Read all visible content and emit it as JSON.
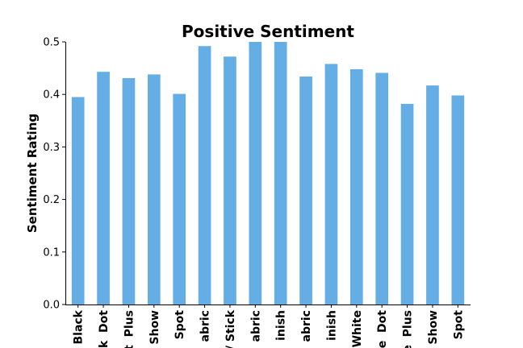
{
  "chart_data": {
    "type": "bar",
    "title": "Positive Sentiment",
    "xlabel": "",
    "ylabel": "Sentiment Rating",
    "ylim": [
      0,
      0.5
    ],
    "yticks": [
      "0.0",
      "0.1",
      "0.2",
      "0.3",
      "0.4",
      "0.5"
    ],
    "grid": false,
    "bar_color": "#64ade5",
    "categories": [
      "Black",
      "k  Dot",
      "t  Plus",
      "Show",
      "Spot",
      "abric",
      "/ Stick",
      "abric",
      "inish",
      "abric",
      "inish",
      "White",
      "e  Dot",
      "e  Plus",
      "Show",
      "Spot"
    ],
    "values": [
      0.395,
      0.443,
      0.431,
      0.438,
      0.401,
      0.492,
      0.472,
      0.5,
      0.5,
      0.434,
      0.458,
      0.448,
      0.441,
      0.382,
      0.417,
      0.398
    ]
  }
}
